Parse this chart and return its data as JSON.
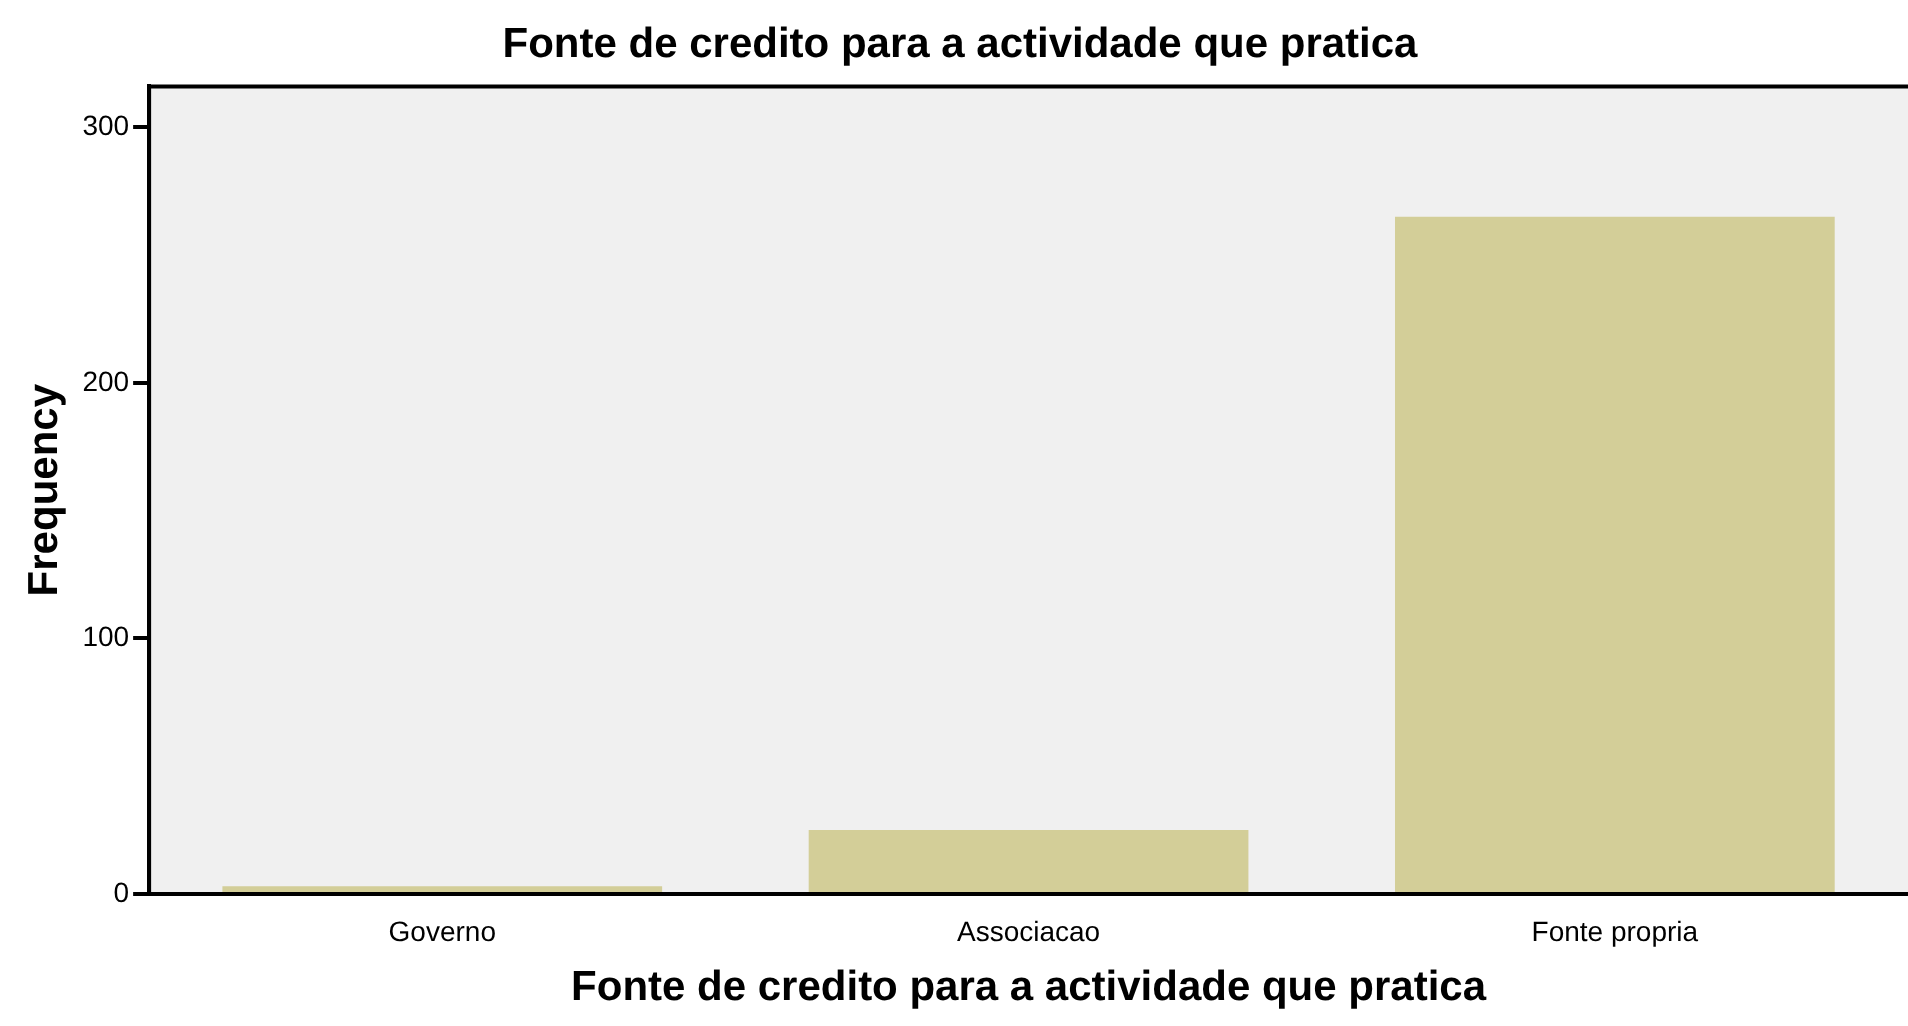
{
  "chart_data": {
    "type": "bar",
    "title": "Fonte de credito para a actividade que pratica",
    "xlabel": "Fonte de credito para a actividade que pratica",
    "ylabel": "Frequency",
    "categories": [
      "Governo",
      "Associacao",
      "Fonte propria"
    ],
    "values": [
      3,
      25,
      265
    ],
    "color": "#d3ce98",
    "ylim": [
      0,
      316
    ],
    "yticks": [
      0,
      100,
      200,
      300
    ],
    "grid": false,
    "legend": false
  }
}
